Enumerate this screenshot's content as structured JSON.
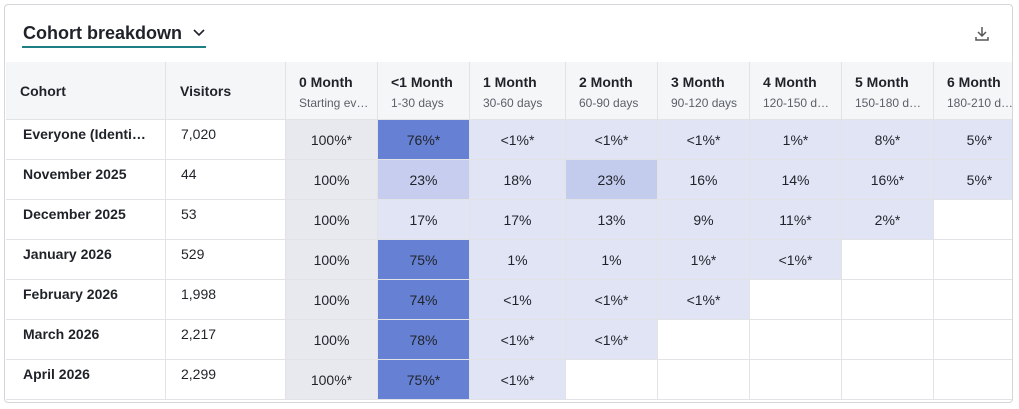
{
  "header": {
    "title": "Cohort breakdown"
  },
  "table": {
    "columns": [
      {
        "title": "Cohort"
      },
      {
        "title": "Visitors"
      },
      {
        "title": "0 Month",
        "subtitle": "Starting ev…"
      },
      {
        "title": "<1 Month",
        "subtitle": "1-30 days"
      },
      {
        "title": "1 Month",
        "subtitle": "30-60 days"
      },
      {
        "title": "2 Month",
        "subtitle": "60-90 days"
      },
      {
        "title": "3 Month",
        "subtitle": "90-120 days"
      },
      {
        "title": "4 Month",
        "subtitle": "120-150 d…"
      },
      {
        "title": "5 Month",
        "subtitle": "150-180 d…"
      },
      {
        "title": "6 Month",
        "subtitle": "180-210 d…"
      }
    ],
    "rows": [
      {
        "cells": [
          "Everyone (Identi…",
          "7,020",
          "100%*",
          "76%*",
          "<1%*",
          "<1%*",
          "<1%*",
          "1%*",
          "8%*",
          "5%*"
        ],
        "colors": [
          "#e8e9ee",
          "#6681d4",
          "#e0e4f5",
          "#e0e4f5",
          "#e0e4f5",
          "#e0e4f5",
          "#e0e4f5",
          "#e0e4f5"
        ]
      },
      {
        "cells": [
          "November 2025",
          "44",
          "100%",
          "23%",
          "18%",
          "23%",
          "16%",
          "14%",
          "16%*",
          "5%*"
        ],
        "colors": [
          "#e8e9ee",
          "#c6cdef",
          "#e0e4f5",
          "#c4ccee",
          "#e0e4f5",
          "#e0e4f5",
          "#e0e4f5",
          "#e0e4f5"
        ]
      },
      {
        "cells": [
          "December 2025",
          "53",
          "100%",
          "17%",
          "17%",
          "13%",
          "9%",
          "11%*",
          "2%*"
        ],
        "colors": [
          "#e8e9ee",
          "#e0e4f5",
          "#e0e4f5",
          "#e0e4f5",
          "#e0e4f5",
          "#e0e4f5",
          "#e0e4f5"
        ]
      },
      {
        "cells": [
          "January 2026",
          "529",
          "100%",
          "75%",
          "1%",
          "1%",
          "1%*",
          "<1%*"
        ],
        "colors": [
          "#e8e9ee",
          "#6681d4",
          "#e0e4f5",
          "#e0e4f5",
          "#e0e4f5",
          "#e0e4f5"
        ]
      },
      {
        "cells": [
          "February 2026",
          "1,998",
          "100%",
          "74%",
          "<1%",
          "<1%*",
          "<1%*"
        ],
        "colors": [
          "#e8e9ee",
          "#6681d4",
          "#e0e4f5",
          "#e0e4f5",
          "#e0e4f5"
        ]
      },
      {
        "cells": [
          "March 2026",
          "2,217",
          "100%",
          "78%",
          "<1%*",
          "<1%*"
        ],
        "colors": [
          "#e8e9ee",
          "#6681d4",
          "#e0e4f5",
          "#e0e4f5"
        ]
      },
      {
        "cells": [
          "April 2026",
          "2,299",
          "100%*",
          "75%*",
          "<1%*"
        ],
        "colors": [
          "#e8e9ee",
          "#6681d4",
          "#e0e4f5"
        ]
      }
    ]
  }
}
